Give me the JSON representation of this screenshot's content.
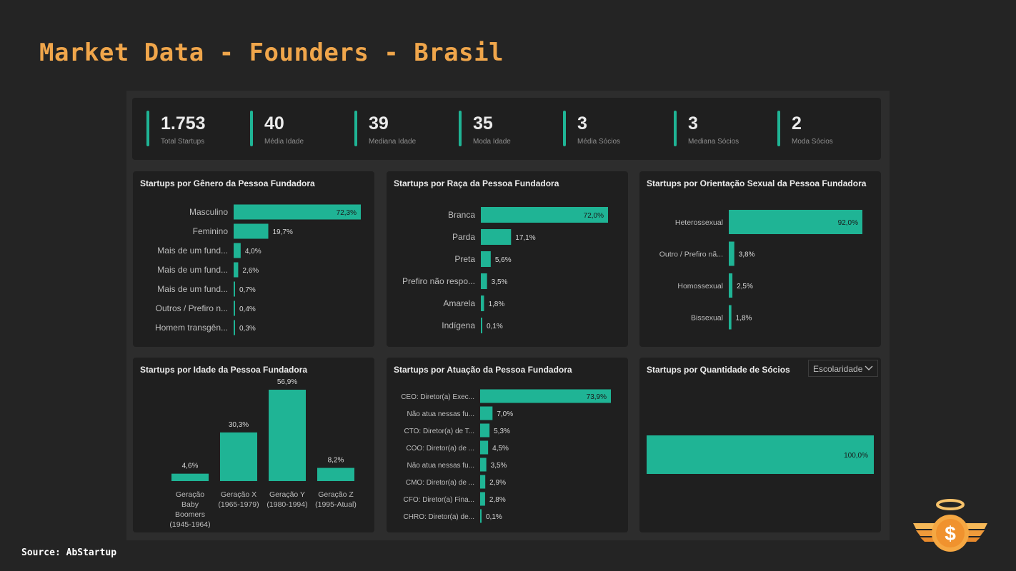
{
  "title": "Market Data - Founders - Brasil",
  "source": "Source: AbStartup",
  "colors": {
    "accent": "#1fb495",
    "title": "#f0a64b",
    "card": "#1f1f1f"
  },
  "kpis": [
    {
      "value": "1.753",
      "label": "Total Startups"
    },
    {
      "value": "40",
      "label": "Média Idade"
    },
    {
      "value": "39",
      "label": "Mediana Idade"
    },
    {
      "value": "35",
      "label": "Moda Idade"
    },
    {
      "value": "3",
      "label": "Média Sócios"
    },
    {
      "value": "3",
      "label": "Mediana Sócios"
    },
    {
      "value": "2",
      "label": "Moda Sócios"
    }
  ],
  "charts": {
    "genero": {
      "title": "Startups por Gênero da Pessoa Fundadora",
      "categories": [
        "Masculino",
        "Feminino",
        "Mais de um fund...",
        "Mais de um fund...",
        "Mais de um fund...",
        "Outros / Prefiro n...",
        "Homem transgên..."
      ],
      "values": [
        72.3,
        19.7,
        4.0,
        2.6,
        0.7,
        0.4,
        0.3
      ],
      "labels": [
        "72,3%",
        "19,7%",
        "4,0%",
        "2,6%",
        "0,7%",
        "0,4%",
        "0,3%"
      ]
    },
    "raca": {
      "title": "Startups por Raça da Pessoa Fundadora",
      "categories": [
        "Branca",
        "Parda",
        "Preta",
        "Prefiro não respo...",
        "Amarela",
        "Indígena"
      ],
      "values": [
        72.0,
        17.1,
        5.6,
        3.5,
        1.8,
        0.1
      ],
      "labels": [
        "72,0%",
        "17,1%",
        "5,6%",
        "3,5%",
        "1,8%",
        "0,1%"
      ]
    },
    "orientacao": {
      "title": "Startups por Orientação Sexual da Pessoa Fundadora",
      "categories": [
        "Heterossexual",
        "Outro / Prefiro nã...",
        "Homossexual",
        "Bissexual"
      ],
      "values": [
        92.0,
        3.8,
        2.5,
        1.8
      ],
      "labels": [
        "92,0%",
        "3,8%",
        "2,5%",
        "1,8%"
      ]
    },
    "idade": {
      "title": "Startups por Idade da Pessoa Fundadora",
      "categories": [
        [
          "Geração",
          "Baby",
          "Boomers",
          "(1945-1964)"
        ],
        [
          "Geração X",
          "(1965-1979)"
        ],
        [
          "Geração Y",
          "(1980-1994)"
        ],
        [
          "Geração Z",
          "(1995-Atual)"
        ]
      ],
      "values": [
        4.6,
        30.3,
        56.9,
        8.2
      ],
      "labels": [
        "4,6%",
        "30,3%",
        "56,9%",
        "8,2%"
      ]
    },
    "atuacao": {
      "title": "Startups por Atuação da Pessoa Fundadora",
      "categories": [
        "CEO: Diretor(a) Exec...",
        "Não atua nessas fu...",
        "CTO: Diretor(a) de T...",
        "COO: Diretor(a) de ...",
        "Não atua nessas fu...",
        "CMO: Diretor(a) de ...",
        "CFO: Diretor(a) Fina...",
        "CHRO: Diretor(a) de..."
      ],
      "values": [
        73.9,
        7.0,
        5.3,
        4.5,
        3.5,
        2.9,
        2.8,
        0.1
      ],
      "labels": [
        "73,9%",
        "7,0%",
        "5,3%",
        "4,5%",
        "3,5%",
        "2,9%",
        "2,8%",
        "0,1%"
      ]
    },
    "socios": {
      "title": "Startups por Quantidade de Sócios",
      "dropdown": "Escolaridade",
      "values": [
        100.0
      ],
      "labels": [
        "100,0%"
      ]
    }
  }
}
